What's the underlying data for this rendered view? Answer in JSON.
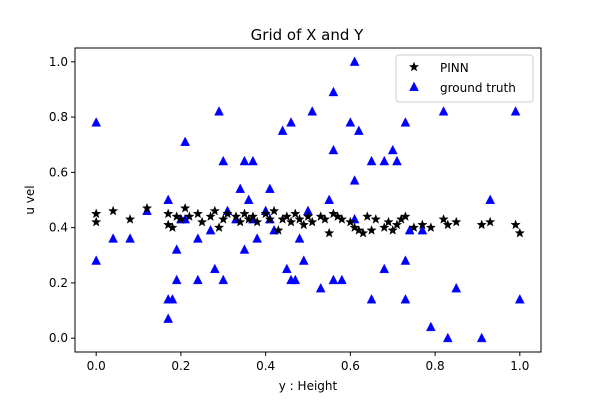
{
  "chart_data": {
    "type": "scatter",
    "title": "Grid of X and Y",
    "xlabel": "y : Height",
    "ylabel": "u vel",
    "xlim": [
      -0.05,
      1.05
    ],
    "ylim": [
      -0.05,
      1.05
    ],
    "xticks": [
      0.0,
      0.2,
      0.4,
      0.6,
      0.8,
      1.0
    ],
    "xtick_labels": [
      "0.0",
      "0.2",
      "0.4",
      "0.6",
      "0.8",
      "1.0"
    ],
    "yticks": [
      0.0,
      0.2,
      0.4,
      0.6,
      0.8,
      1.0
    ],
    "ytick_labels": [
      "0.0",
      "0.2",
      "0.4",
      "0.6",
      "0.8",
      "1.0"
    ],
    "grid": false,
    "legend_position": "top-right",
    "series": [
      {
        "name": "PINN",
        "marker": "star",
        "color": "#000000",
        "points": [
          [
            0.0,
            0.45
          ],
          [
            0.0,
            0.42
          ],
          [
            0.04,
            0.46
          ],
          [
            0.08,
            0.43
          ],
          [
            0.12,
            0.47
          ],
          [
            0.17,
            0.45
          ],
          [
            0.17,
            0.41
          ],
          [
            0.18,
            0.4
          ],
          [
            0.19,
            0.44
          ],
          [
            0.2,
            0.43
          ],
          [
            0.21,
            0.47
          ],
          [
            0.22,
            0.44
          ],
          [
            0.24,
            0.45
          ],
          [
            0.25,
            0.42
          ],
          [
            0.27,
            0.44
          ],
          [
            0.28,
            0.46
          ],
          [
            0.29,
            0.4
          ],
          [
            0.3,
            0.43
          ],
          [
            0.31,
            0.45
          ],
          [
            0.33,
            0.44
          ],
          [
            0.34,
            0.42
          ],
          [
            0.35,
            0.45
          ],
          [
            0.36,
            0.43
          ],
          [
            0.37,
            0.44
          ],
          [
            0.38,
            0.42
          ],
          [
            0.4,
            0.45
          ],
          [
            0.41,
            0.43
          ],
          [
            0.42,
            0.46
          ],
          [
            0.43,
            0.39
          ],
          [
            0.44,
            0.43
          ],
          [
            0.45,
            0.44
          ],
          [
            0.46,
            0.42
          ],
          [
            0.47,
            0.45
          ],
          [
            0.48,
            0.43
          ],
          [
            0.49,
            0.41
          ],
          [
            0.5,
            0.44
          ],
          [
            0.51,
            0.42
          ],
          [
            0.53,
            0.44
          ],
          [
            0.54,
            0.43
          ],
          [
            0.55,
            0.38
          ],
          [
            0.56,
            0.45
          ],
          [
            0.57,
            0.44
          ],
          [
            0.58,
            0.43
          ],
          [
            0.6,
            0.42
          ],
          [
            0.61,
            0.4
          ],
          [
            0.62,
            0.39
          ],
          [
            0.63,
            0.38
          ],
          [
            0.64,
            0.44
          ],
          [
            0.65,
            0.39
          ],
          [
            0.66,
            0.43
          ],
          [
            0.68,
            0.4
          ],
          [
            0.69,
            0.42
          ],
          [
            0.7,
            0.39
          ],
          [
            0.71,
            0.41
          ],
          [
            0.72,
            0.43
          ],
          [
            0.73,
            0.44
          ],
          [
            0.75,
            0.4
          ],
          [
            0.77,
            0.41
          ],
          [
            0.79,
            0.4
          ],
          [
            0.82,
            0.43
          ],
          [
            0.83,
            0.41
          ],
          [
            0.85,
            0.42
          ],
          [
            0.91,
            0.41
          ],
          [
            0.93,
            0.42
          ],
          [
            0.99,
            0.41
          ],
          [
            1.0,
            0.38
          ]
        ]
      },
      {
        "name": "ground truth",
        "marker": "triangle",
        "color": "#0000ff",
        "points": [
          [
            0.0,
            0.78
          ],
          [
            0.0,
            0.28
          ],
          [
            0.04,
            0.36
          ],
          [
            0.08,
            0.36
          ],
          [
            0.12,
            0.46
          ],
          [
            0.17,
            0.07
          ],
          [
            0.17,
            0.14
          ],
          [
            0.17,
            0.5
          ],
          [
            0.18,
            0.14
          ],
          [
            0.19,
            0.21
          ],
          [
            0.19,
            0.32
          ],
          [
            0.2,
            0.43
          ],
          [
            0.21,
            0.43
          ],
          [
            0.21,
            0.71
          ],
          [
            0.24,
            0.21
          ],
          [
            0.24,
            0.36
          ],
          [
            0.27,
            0.39
          ],
          [
            0.28,
            0.25
          ],
          [
            0.29,
            0.82
          ],
          [
            0.3,
            0.21
          ],
          [
            0.3,
            0.64
          ],
          [
            0.31,
            0.46
          ],
          [
            0.33,
            0.43
          ],
          [
            0.34,
            0.54
          ],
          [
            0.35,
            0.64
          ],
          [
            0.35,
            0.32
          ],
          [
            0.36,
            0.5
          ],
          [
            0.37,
            0.43
          ],
          [
            0.37,
            0.64
          ],
          [
            0.38,
            0.36
          ],
          [
            0.4,
            0.46
          ],
          [
            0.41,
            0.54
          ],
          [
            0.41,
            0.43
          ],
          [
            0.42,
            0.39
          ],
          [
            0.44,
            0.75
          ],
          [
            0.45,
            0.25
          ],
          [
            0.46,
            0.78
          ],
          [
            0.46,
            0.21
          ],
          [
            0.47,
            0.21
          ],
          [
            0.48,
            0.36
          ],
          [
            0.49,
            0.28
          ],
          [
            0.5,
            0.46
          ],
          [
            0.51,
            0.82
          ],
          [
            0.53,
            0.18
          ],
          [
            0.55,
            0.5
          ],
          [
            0.56,
            0.21
          ],
          [
            0.56,
            0.89
          ],
          [
            0.56,
            0.68
          ],
          [
            0.58,
            0.21
          ],
          [
            0.6,
            0.78
          ],
          [
            0.61,
            0.57
          ],
          [
            0.61,
            0.43
          ],
          [
            0.61,
            1.0
          ],
          [
            0.62,
            0.75
          ],
          [
            0.65,
            0.64
          ],
          [
            0.65,
            0.14
          ],
          [
            0.68,
            0.64
          ],
          [
            0.68,
            0.25
          ],
          [
            0.7,
            0.68
          ],
          [
            0.71,
            0.64
          ],
          [
            0.73,
            0.28
          ],
          [
            0.73,
            0.14
          ],
          [
            0.73,
            0.78
          ],
          [
            0.74,
            0.39
          ],
          [
            0.77,
            0.39
          ],
          [
            0.79,
            0.04
          ],
          [
            0.82,
            0.82
          ],
          [
            0.83,
            0.0
          ],
          [
            0.85,
            0.18
          ],
          [
            0.91,
            0.0
          ],
          [
            0.93,
            0.5
          ],
          [
            0.99,
            0.82
          ],
          [
            1.0,
            0.14
          ]
        ]
      }
    ]
  }
}
